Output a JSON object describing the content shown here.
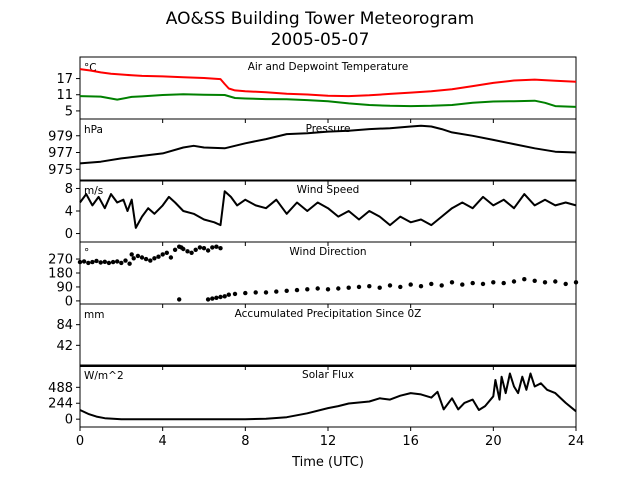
{
  "figure": {
    "title_line1": "AO&SS Building Tower Meteorogram",
    "title_line2": "2005-05-07",
    "xlabel": "Time (UTC)"
  },
  "chart_data": [
    {
      "type": "line",
      "title": "Air and Depwoint Temperature",
      "unit": "°C",
      "xlim": [
        0,
        24
      ],
      "ylim": [
        2,
        25
      ],
      "yticks": [
        5,
        11,
        17
      ],
      "grid": false,
      "series": [
        {
          "color": "#ff0000",
          "x": [
            0,
            0.5,
            1,
            1.5,
            2,
            2.5,
            3,
            4,
            5,
            6,
            6.8,
            7.0,
            7.2,
            7.5,
            8,
            9,
            10,
            11,
            12,
            13,
            14,
            15,
            16,
            17,
            18,
            19,
            20,
            21,
            22,
            23,
            24
          ],
          "y": [
            20.5,
            20.0,
            19.3,
            18.8,
            18.5,
            18.2,
            18.0,
            17.8,
            17.5,
            17.2,
            16.8,
            15.0,
            13.3,
            12.6,
            12.3,
            11.9,
            11.4,
            11.1,
            10.6,
            10.5,
            10.8,
            11.3,
            11.8,
            12.3,
            13.0,
            14.2,
            15.4,
            16.3,
            16.6,
            16.2,
            15.8
          ]
        },
        {
          "color": "#008000",
          "x": [
            0,
            1,
            1.8,
            2.5,
            3,
            4,
            5,
            6,
            7,
            7.5,
            8,
            9,
            10,
            11,
            12,
            13,
            14,
            15,
            16,
            17,
            18,
            19,
            20,
            21,
            22,
            22.5,
            23,
            24
          ],
          "y": [
            10.5,
            10.3,
            9.2,
            10.2,
            10.4,
            10.9,
            11.2,
            11.0,
            10.9,
            9.8,
            9.6,
            9.4,
            9.3,
            9.0,
            8.6,
            7.8,
            7.2,
            6.9,
            6.8,
            6.9,
            7.2,
            8.0,
            8.5,
            8.6,
            8.8,
            8.0,
            6.8,
            6.5
          ]
        }
      ]
    },
    {
      "type": "line",
      "title": "Pressure",
      "unit": "hPa",
      "xlim": [
        0,
        24
      ],
      "ylim": [
        973.6,
        981.0
      ],
      "yticks": [
        975,
        977,
        979
      ],
      "grid": false,
      "series": [
        {
          "color": "#000000",
          "x": [
            0,
            1,
            2,
            3,
            4,
            5,
            5.5,
            6,
            7,
            8,
            9,
            10,
            11,
            12,
            13,
            14,
            15,
            16,
            16.5,
            17,
            17.5,
            18,
            19,
            20,
            21,
            22,
            23,
            24
          ],
          "y": [
            975.7,
            975.9,
            976.3,
            976.6,
            976.9,
            977.6,
            977.8,
            977.6,
            977.5,
            978.1,
            978.6,
            979.2,
            979.3,
            979.5,
            979.6,
            979.8,
            979.9,
            980.1,
            980.2,
            980.1,
            979.8,
            979.4,
            979.0,
            978.5,
            978.0,
            977.5,
            977.1,
            977.0
          ]
        }
      ]
    },
    {
      "type": "line",
      "title": "Wind Speed",
      "unit": "m/s",
      "xlim": [
        0,
        24
      ],
      "ylim": [
        -1.5,
        9.5
      ],
      "yticks": [
        0,
        4,
        8
      ],
      "grid": false,
      "series": [
        {
          "color": "#000000",
          "x": [
            0,
            0.3,
            0.6,
            0.9,
            1.2,
            1.5,
            1.8,
            2.1,
            2.3,
            2.5,
            2.7,
            3,
            3.3,
            3.6,
            4,
            4.3,
            4.6,
            5,
            5.5,
            6,
            6.5,
            6.8,
            7.0,
            7.3,
            7.6,
            8,
            8.5,
            9,
            9.5,
            10,
            10.5,
            11,
            11.5,
            12,
            12.5,
            13,
            13.5,
            14,
            14.5,
            15,
            15.5,
            16,
            16.5,
            17,
            17.5,
            18,
            18.5,
            19,
            19.5,
            20,
            20.5,
            21,
            21.5,
            22,
            22.5,
            23,
            23.5,
            24
          ],
          "y": [
            5.5,
            7.0,
            5.0,
            6.5,
            4.5,
            7.0,
            5.5,
            6.0,
            4.0,
            6.0,
            1.0,
            3.0,
            4.5,
            3.5,
            5.0,
            6.5,
            5.5,
            4.0,
            3.5,
            2.5,
            2.0,
            1.5,
            7.5,
            6.5,
            5.0,
            6.0,
            5.0,
            4.5,
            6.0,
            3.5,
            5.5,
            4.0,
            5.5,
            4.5,
            3.0,
            4.0,
            2.5,
            4.0,
            3.0,
            1.5,
            3.0,
            2.0,
            2.5,
            1.5,
            3.0,
            4.5,
            5.5,
            4.5,
            6.5,
            5.0,
            6.0,
            4.5,
            7.0,
            5.0,
            6.0,
            5.0,
            5.5,
            5.0
          ]
        }
      ]
    },
    {
      "type": "scatter",
      "title": "Wind Direction",
      "unit": "°",
      "xlim": [
        0,
        24
      ],
      "ylim": [
        -20,
        380
      ],
      "yticks": [
        0,
        90,
        180,
        270
      ],
      "grid": false,
      "series": [
        {
          "color": "#000000",
          "x": [
            0,
            0.2,
            0.4,
            0.6,
            0.8,
            1.0,
            1.2,
            1.4,
            1.6,
            1.8,
            2.0,
            2.2,
            2.4,
            2.5,
            2.6,
            2.8,
            3.0,
            3.2,
            3.4,
            3.6,
            3.8,
            4.0,
            4.2,
            4.4,
            4.6,
            4.8,
            4.9,
            5.0,
            5.2,
            5.4,
            5.6,
            5.8,
            6.0,
            6.2,
            6.4,
            6.6,
            6.8,
            4.8,
            6.2,
            6.4,
            6.6,
            6.8,
            7.0,
            7.2,
            7.5,
            8,
            8.5,
            9,
            9.5,
            10,
            10.5,
            11,
            11.5,
            12,
            12.5,
            13,
            13.5,
            14,
            14.5,
            15,
            15.5,
            16,
            16.5,
            17,
            17.5,
            18,
            18.5,
            19,
            19.5,
            20,
            20.5,
            21,
            21.5,
            22,
            22.5,
            23,
            23.5,
            24
          ],
          "y": [
            250,
            255,
            245,
            250,
            258,
            248,
            252,
            245,
            250,
            255,
            245,
            260,
            240,
            300,
            275,
            290,
            280,
            270,
            260,
            275,
            285,
            300,
            310,
            280,
            330,
            350,
            345,
            335,
            320,
            310,
            330,
            345,
            340,
            325,
            345,
            350,
            340,
            10,
            10,
            15,
            20,
            25,
            30,
            40,
            45,
            50,
            55,
            55,
            60,
            65,
            70,
            75,
            80,
            75,
            80,
            85,
            90,
            95,
            85,
            100,
            90,
            105,
            95,
            110,
            100,
            120,
            105,
            115,
            110,
            120,
            115,
            125,
            140,
            130,
            120,
            125,
            110,
            120
          ]
        }
      ]
    },
    {
      "type": "line",
      "title": "Accumulated Precipitation Since 0Z",
      "unit": "mm",
      "xlim": [
        0,
        24
      ],
      "ylim": [
        0,
        126
      ],
      "yticks": [
        42,
        84
      ],
      "grid": false,
      "series": [
        {
          "color": "#000000",
          "x": [
            0,
            24
          ],
          "y": [
            0,
            0
          ]
        }
      ]
    },
    {
      "type": "line",
      "title": "Solar Flux",
      "unit": "W/m^2",
      "xlim": [
        0,
        24
      ],
      "ylim": [
        -120,
        830
      ],
      "yticks": [
        0,
        244,
        488
      ],
      "grid": false,
      "series": [
        {
          "color": "#000000",
          "x": [
            0,
            0.4,
            0.8,
            1.2,
            2,
            4,
            6,
            8,
            9,
            10,
            11,
            12,
            12.5,
            13,
            14,
            14.5,
            15,
            15.5,
            16,
            16.5,
            17,
            17.3,
            17.6,
            18,
            18.3,
            18.6,
            19,
            19.3,
            19.6,
            20,
            20.1,
            20.3,
            20.4,
            20.6,
            20.8,
            21,
            21.2,
            21.4,
            21.6,
            21.8,
            22,
            22.3,
            22.6,
            23,
            23.5,
            24
          ],
          "y": [
            140,
            80,
            40,
            15,
            0,
            0,
            0,
            0,
            5,
            30,
            90,
            170,
            200,
            240,
            270,
            320,
            300,
            360,
            400,
            380,
            330,
            420,
            150,
            320,
            150,
            250,
            300,
            140,
            200,
            350,
            600,
            300,
            650,
            400,
            700,
            500,
            400,
            650,
            450,
            700,
            500,
            550,
            450,
            400,
            250,
            120
          ]
        }
      ]
    }
  ]
}
